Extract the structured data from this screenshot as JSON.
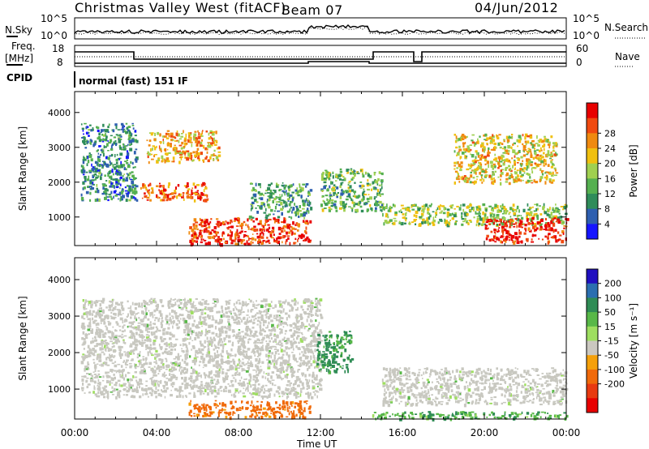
{
  "header": {
    "station": "Christmas Valley West (fitACF)",
    "beam": "Beam 07",
    "date": "04/Jun/2012"
  },
  "top_panels": {
    "nsky_label": "N.Sky",
    "nsky_ticks": [
      "10^5",
      "10^0"
    ],
    "nsearch_label": "N.Search",
    "nsearch_ticks": [
      "10^5",
      "10^0"
    ],
    "freq_label": [
      "Freq.",
      "[MHz]"
    ],
    "freq_ticks": [
      "18",
      "8"
    ],
    "nave_label": "Nave",
    "nave_ticks": [
      "60",
      "0"
    ],
    "cpid_label": "CPID",
    "cpid_value": "normal (fast) 151 IF"
  },
  "colors": {
    "power": [
      "#1515ff",
      "#2e5fb0",
      "#2f8c5a",
      "#55b050",
      "#a0d050",
      "#f0c010",
      "#f08a10",
      "#f04a10",
      "#e80000"
    ],
    "velocity": [
      "#2010c0",
      "#2b6fb0",
      "#2f8c55",
      "#58b848",
      "#9ede60",
      "#cbc8c0",
      "#f5a00a",
      "#f06a0a",
      "#e83a10",
      "#e80000"
    ],
    "ground_scatter": "#c8c8c0"
  },
  "chart_data": [
    {
      "type": "heatmap",
      "title": "",
      "xlabel": "Time UT",
      "ylabel": "Slant Range [km]",
      "xlim": [
        "00:00",
        "24:00"
      ],
      "xticks": [
        "00:00",
        "04:00",
        "08:00",
        "12:00",
        "16:00",
        "20:00",
        "00:00"
      ],
      "ylim": [
        180,
        4600
      ],
      "yticks": [
        "1000",
        "2000",
        "3000",
        "4000"
      ],
      "colorbar": {
        "label": "Power [dB]",
        "ticks": [
          "4",
          "8",
          "12",
          "16",
          "20",
          "24",
          "28"
        ],
        "range": [
          0,
          30
        ]
      },
      "features": [
        {
          "t_start": 0.3,
          "t_end": 3.0,
          "range_start": 1500,
          "range_end": 3700,
          "value": 8
        },
        {
          "t_start": 3.2,
          "t_end": 6.5,
          "range_start": 1500,
          "range_end": 2000,
          "value": 24
        },
        {
          "t_start": 3.5,
          "t_end": 7.0,
          "range_start": 2600,
          "range_end": 3500,
          "value": 20
        },
        {
          "t_start": 5.5,
          "t_end": 11.5,
          "range_start": 250,
          "range_end": 1000,
          "value": 26
        },
        {
          "t_start": 8.5,
          "t_end": 11.5,
          "range_start": 1000,
          "range_end": 2000,
          "value": 10
        },
        {
          "t_start": 12.0,
          "t_end": 15.0,
          "range_start": 1200,
          "range_end": 2400,
          "value": 12
        },
        {
          "t_start": 15.0,
          "t_end": 24.0,
          "range_start": 800,
          "range_end": 1400,
          "value": 14
        },
        {
          "t_start": 20.0,
          "t_end": 24.0,
          "range_start": 300,
          "range_end": 1000,
          "value": 28
        },
        {
          "t_start": 18.5,
          "t_end": 23.5,
          "range_start": 2000,
          "range_end": 3400,
          "value": 18
        }
      ]
    },
    {
      "type": "heatmap",
      "title": "",
      "xlabel": "Time UT",
      "ylabel": "Slant Range [km]",
      "xlim": [
        "00:00",
        "24:00"
      ],
      "xticks": [
        "00:00",
        "04:00",
        "08:00",
        "12:00",
        "16:00",
        "20:00",
        "00:00"
      ],
      "ylim": [
        180,
        4600
      ],
      "yticks": [
        "1000",
        "2000",
        "3000",
        "4000"
      ],
      "colorbar": {
        "label": "Velocity [m s⁻¹]",
        "ticks": [
          "200",
          "100",
          "50",
          "15",
          "-15",
          "-50",
          "-100",
          "-200"
        ],
        "range": [
          -250,
          250
        ]
      },
      "features": [
        {
          "t_start": 0.3,
          "t_end": 12.0,
          "range_start": 800,
          "range_end": 3500,
          "value": 0,
          "ground_scatter": true
        },
        {
          "t_start": 15.0,
          "t_end": 24.0,
          "range_start": 600,
          "range_end": 1600,
          "value": 0,
          "ground_scatter": true
        },
        {
          "t_start": 5.5,
          "t_end": 11.5,
          "range_start": 250,
          "range_end": 700,
          "value": -120
        },
        {
          "t_start": 11.8,
          "t_end": 13.5,
          "range_start": 1500,
          "range_end": 2600,
          "value": 60
        },
        {
          "t_start": 14.5,
          "t_end": 24.0,
          "range_start": 200,
          "range_end": 400,
          "value": 40
        }
      ]
    }
  ]
}
